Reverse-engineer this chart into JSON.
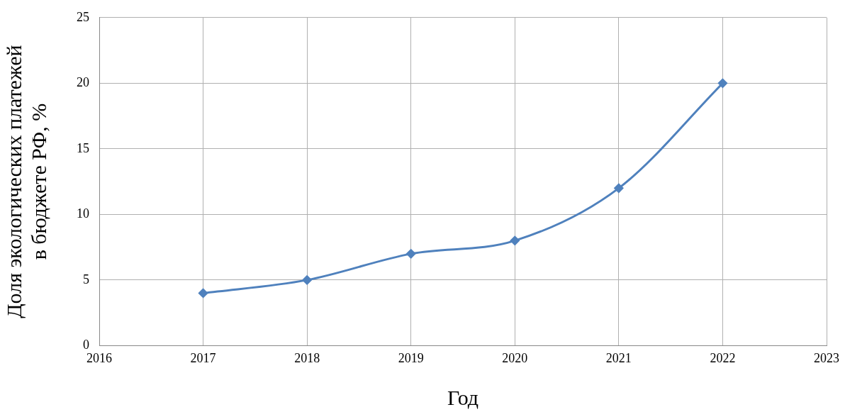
{
  "chart_data": {
    "type": "line",
    "xlabel": "Год",
    "ylabel": "Доля экологических платежей\nв бюджете РФ, %",
    "x": [
      2017,
      2018,
      2019,
      2020,
      2021,
      2022
    ],
    "series": [
      {
        "color": "#4f81bd",
        "values": [
          4,
          5,
          7,
          8,
          12,
          20
        ]
      }
    ],
    "xlim": [
      2016,
      2023
    ],
    "xticks": [
      2016,
      2017,
      2018,
      2019,
      2020,
      2021,
      2022,
      2023
    ],
    "ylim": [
      0,
      25
    ],
    "yticks": [
      0,
      5,
      10,
      15,
      20,
      25
    ],
    "grid": true,
    "marker": "diamond",
    "line_style": "solid"
  }
}
